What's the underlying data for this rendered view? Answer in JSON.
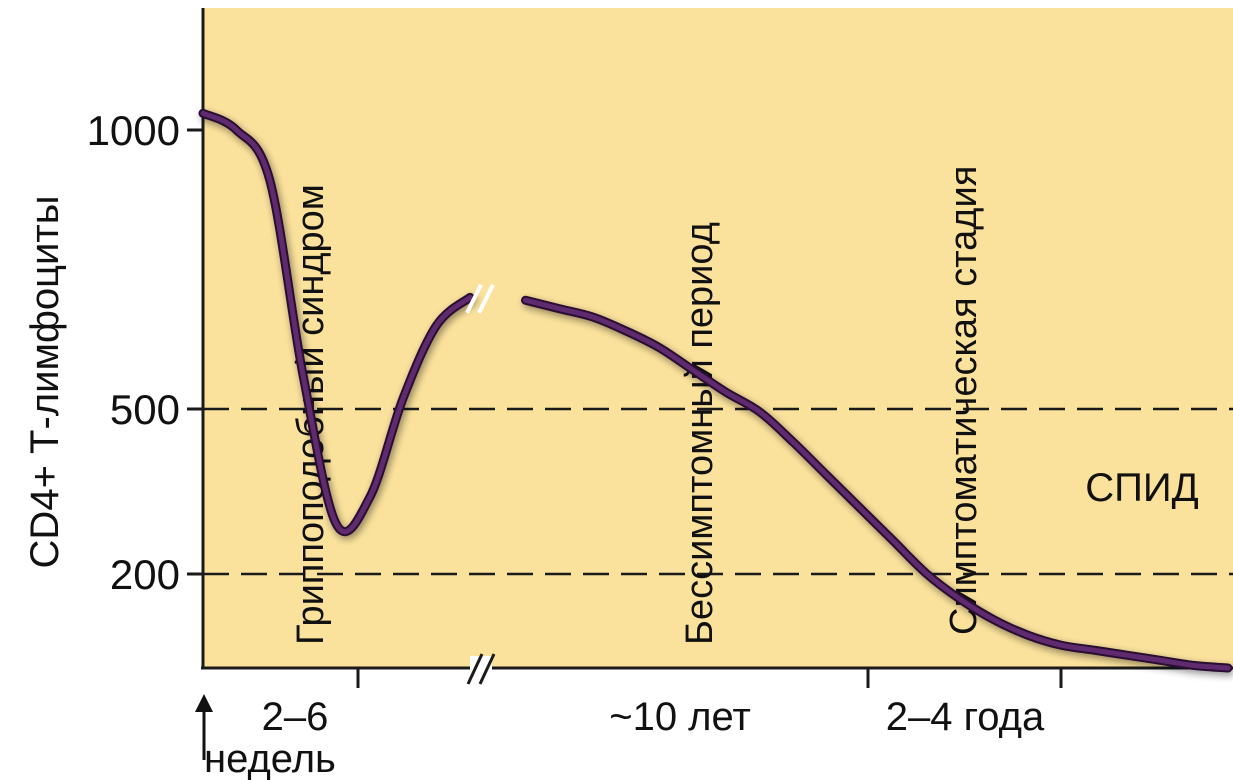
{
  "chart_data": {
    "type": "line",
    "ylabel": "CD4+ Т-лимфоциты",
    "y_ticks": [
      {
        "value": 1000,
        "label": "1000"
      },
      {
        "value": 500,
        "label": "500"
      },
      {
        "value": 200,
        "label": "200"
      }
    ],
    "ylim": [
      0,
      1200
    ],
    "reference_lines": [
      500,
      200
    ],
    "x_tick_labels": [
      "2–6",
      "~10 лет",
      "2–4 года"
    ],
    "x_start_label": "недель",
    "axis_break": true,
    "phases": [
      "Гриппоподобный синдром",
      "Бессимптомный период",
      "Симптоматическая стадия"
    ],
    "region_label": "СПИД",
    "curve_color": "#5e2a6e",
    "background_color": "#fbe29c",
    "series": [
      {
        "x": [
          0,
          1,
          2,
          3,
          4,
          5,
          6,
          7,
          8,
          9,
          10,
          11,
          12,
          13,
          14,
          15,
          16,
          17,
          18,
          19,
          20,
          21,
          22,
          23,
          24,
          25,
          26,
          27,
          28,
          29,
          30
        ],
        "y": [
          1030,
          1000,
          910,
          560,
          290,
          340,
          520,
          650,
          700,
          695,
          680,
          665,
          640,
          610,
          570,
          530,
          495,
          440,
          380,
          320,
          260,
          200,
          150,
          110,
          80,
          60,
          50,
          40,
          30,
          20,
          15
        ]
      }
    ]
  }
}
